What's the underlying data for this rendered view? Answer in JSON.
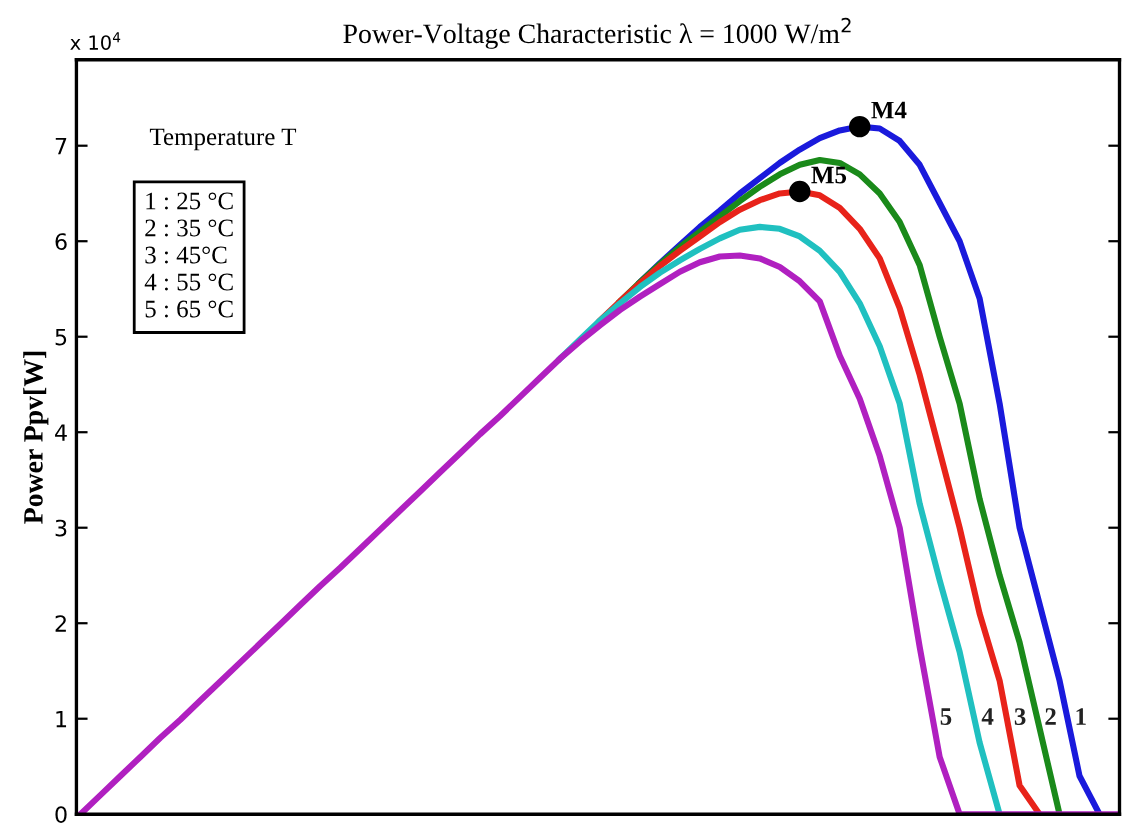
{
  "chart_data": {
    "type": "line",
    "title": "Power-Voltage Characteristic λ = 1000 W/m$^{2}$",
    "ylabel": "Power Ppv[W]",
    "categories": [
      null,
      null,
      null,
      null,
      null,
      null,
      null,
      null,
      null,
      null,
      null,
      null,
      null,
      null,
      null,
      null,
      null,
      null,
      null,
      null,
      null,
      null,
      null,
      null,
      null,
      null,
      null,
      null,
      null,
      null,
      null,
      null,
      null,
      null,
      null,
      null,
      null,
      null,
      null,
      null,
      null,
      null,
      null,
      null,
      null,
      null,
      null,
      null,
      null,
      null,
      null,
      null,
      null
    ],
    "ylim": [
      0,
      7.9
    ],
    "yticks": [
      0,
      1,
      2,
      3,
      4,
      5,
      6,
      7
    ],
    "grid": false,
    "legend": false,
    "marker": "none",
    "line_style": "solid",
    "annotations": [
      "x 10$^{4}$",
      "Temperature T",
      "1 : 25 °C",
      "2 : 35 °C",
      "3 : 45°C",
      "4 : 55 °C",
      "5 : 65 °C"
    ],
    "series": [
      {
        "name": "1",
        "color": "#1a1adc",
        "values": [
          null,
          null,
          null,
          null,
          null,
          null,
          null,
          null,
          null,
          null,
          null,
          null,
          null,
          null,
          null,
          null,
          null,
          null,
          null,
          null,
          null,
          null,
          null,
          null,
          null,
          null,
          null,
          null,
          5.57,
          5.77,
          5.96,
          6.15,
          6.32,
          6.5,
          6.66,
          6.82,
          6.96,
          7.08,
          7.16,
          7.2,
          7.18,
          7.05,
          6.8,
          6.4,
          6.0,
          5.4,
          4.3,
          3.0,
          2.2,
          1.4,
          0.4,
          0,
          null
        ]
      },
      {
        "name": "2",
        "color": "#1a8a1a",
        "values": [
          null,
          null,
          null,
          null,
          null,
          null,
          null,
          null,
          null,
          null,
          null,
          null,
          null,
          null,
          null,
          null,
          null,
          null,
          null,
          null,
          null,
          null,
          null,
          null,
          null,
          null,
          null,
          5.37,
          5.57,
          5.76,
          5.94,
          6.1,
          6.26,
          6.42,
          6.57,
          6.7,
          6.8,
          6.85,
          6.82,
          6.7,
          6.5,
          6.2,
          5.75,
          5.0,
          4.3,
          3.3,
          2.5,
          1.8,
          0.9,
          0,
          null,
          null,
          null
        ]
      },
      {
        "name": "3",
        "color": "#e8231a",
        "values": [
          null,
          null,
          null,
          null,
          null,
          null,
          null,
          null,
          null,
          null,
          null,
          null,
          null,
          null,
          null,
          null,
          null,
          null,
          null,
          null,
          null,
          null,
          null,
          null,
          null,
          null,
          5.17,
          5.37,
          5.56,
          5.74,
          5.9,
          6.05,
          6.2,
          6.33,
          6.43,
          6.5,
          6.52,
          6.48,
          6.35,
          6.13,
          5.82,
          5.3,
          4.6,
          3.8,
          3.0,
          2.1,
          1.4,
          0.3,
          0,
          null,
          null,
          null,
          null
        ]
      },
      {
        "name": "4",
        "color": "#20c0c0",
        "values": [
          null,
          null,
          null,
          null,
          null,
          null,
          null,
          null,
          null,
          null,
          null,
          null,
          null,
          null,
          null,
          null,
          null,
          null,
          null,
          null,
          null,
          null,
          null,
          null,
          4.77,
          4.97,
          5.17,
          5.35,
          5.52,
          5.67,
          5.8,
          5.92,
          6.03,
          6.12,
          6.15,
          6.13,
          6.05,
          5.9,
          5.68,
          5.35,
          4.9,
          4.3,
          3.25,
          2.45,
          1.7,
          0.75,
          0,
          null,
          null,
          null,
          null,
          null,
          null
        ]
      },
      {
        "name": "5",
        "color": "#b020c0",
        "values": [
          0,
          0.2,
          0.4,
          0.6,
          0.8,
          0.99,
          1.19,
          1.39,
          1.59,
          1.79,
          1.99,
          2.19,
          2.39,
          2.58,
          2.78,
          2.98,
          3.18,
          3.38,
          3.58,
          3.78,
          3.98,
          4.17,
          4.37,
          4.57,
          4.77,
          4.95,
          5.12,
          5.28,
          5.42,
          5.55,
          5.68,
          5.78,
          5.84,
          5.85,
          5.82,
          5.73,
          5.58,
          5.37,
          4.8,
          4.35,
          3.75,
          3.0,
          1.75,
          0.6,
          0,
          0,
          0,
          0,
          0,
          0,
          0,
          0,
          0
        ]
      },
      {
        "type": "scatter",
        "color": "#000000",
        "marker": "circle",
        "values": [
          null,
          null,
          null,
          null,
          null,
          null,
          null,
          null,
          null,
          null,
          null,
          null,
          null,
          null,
          null,
          null,
          null,
          null,
          null,
          null,
          null,
          null,
          null,
          null,
          null,
          null,
          null,
          null,
          null,
          null,
          null,
          null,
          null,
          null,
          null,
          null,
          6.52,
          null,
          null,
          7.2,
          null,
          null,
          null,
          null,
          null,
          null,
          null,
          null,
          null,
          null,
          null,
          null,
          null
        ],
        "value_labels": [
          null,
          null,
          null,
          null,
          null,
          null,
          null,
          null,
          null,
          null,
          null,
          null,
          null,
          null,
          null,
          null,
          null,
          null,
          null,
          null,
          null,
          null,
          null,
          null,
          null,
          null,
          null,
          null,
          null,
          null,
          null,
          null,
          null,
          null,
          null,
          null,
          "M5",
          null,
          null,
          "M4",
          null,
          null,
          null,
          null,
          null,
          null,
          null,
          null,
          null,
          null,
          null,
          null,
          null
        ]
      }
    ]
  }
}
